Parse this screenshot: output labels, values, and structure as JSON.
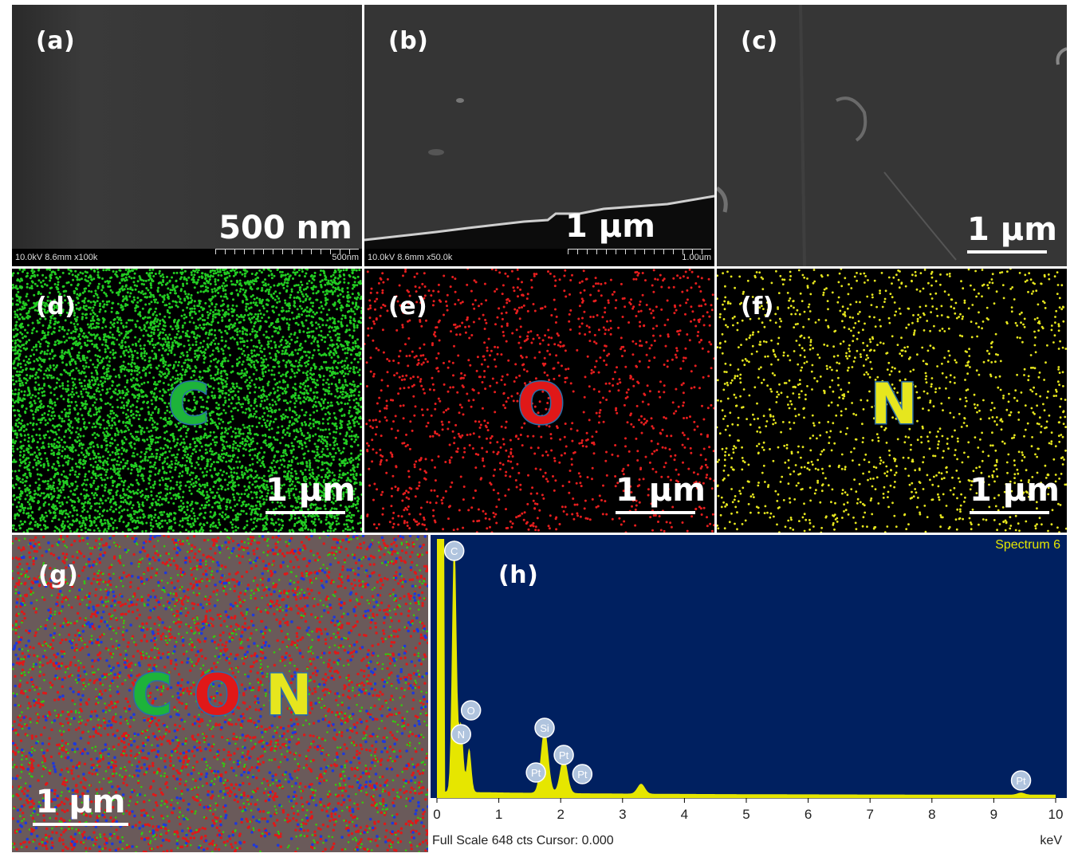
{
  "panels": {
    "a": {
      "label": "(a)",
      "scale": "500 nm",
      "info_meta": "10.0kV 8.6mm x100k",
      "info_len": "500nm"
    },
    "b": {
      "label": "(b)",
      "scale": "1 μm",
      "info_meta": "10.0kV 8.6mm x50.0k",
      "info_len": "1.00um"
    },
    "c": {
      "label": "(c)",
      "scale": "1 μm"
    },
    "d": {
      "label": "(d)",
      "element": "C",
      "scale": "1 μm",
      "color": "#22cc22"
    },
    "e": {
      "label": "(e)",
      "element": "O",
      "scale": "1 μm",
      "color": "#e61e1e"
    },
    "f": {
      "label": "(f)",
      "element": "N",
      "scale": "1 μm",
      "color": "#e6e61e"
    },
    "g": {
      "label": "(g)",
      "elements": [
        "C",
        "O",
        "N"
      ],
      "scale": "1 μm"
    },
    "h": {
      "label": "(h)"
    }
  },
  "chart_data": {
    "type": "line",
    "title": "Spectrum 6",
    "xlabel": "keV",
    "xlim": [
      0,
      10
    ],
    "xticks": [
      0,
      1,
      2,
      3,
      4,
      5,
      6,
      7,
      8,
      9,
      10
    ],
    "footer": "Full Scale 648 cts Cursor: 0.000",
    "peaks": [
      {
        "label": "C",
        "x": 0.28,
        "y": 648
      },
      {
        "label": "N",
        "x": 0.39,
        "y": 170
      },
      {
        "label": "O",
        "x": 0.52,
        "y": 110
      },
      {
        "label": "Si",
        "x": 1.74,
        "y": 160
      },
      {
        "label": "Pt",
        "x": 2.05,
        "y": 90
      },
      {
        "label": "Pt",
        "x": 3.3,
        "y": 25
      },
      {
        "label": "Pt",
        "x": 9.44,
        "y": 5
      }
    ],
    "peak_markers": [
      {
        "label": "C",
        "x": 0.28
      },
      {
        "label": "O",
        "x": 0.55
      },
      {
        "label": "N",
        "x": 0.39
      },
      {
        "label": "Si",
        "x": 1.74
      },
      {
        "label": "Pt",
        "x": 2.05
      },
      {
        "label": "Pt",
        "x": 1.6
      },
      {
        "label": "Pt",
        "x": 2.35
      },
      {
        "label": "Pt",
        "x": 9.44
      }
    ],
    "colors": {
      "background": "#002060",
      "trace": "#e6e600",
      "marker": "#b0c4de"
    }
  }
}
